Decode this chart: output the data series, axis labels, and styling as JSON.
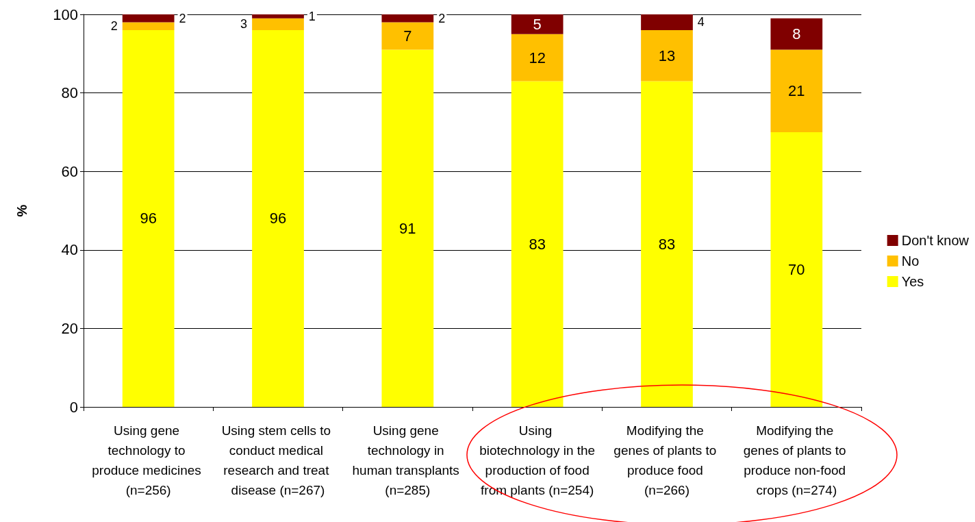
{
  "chart_data": {
    "type": "bar",
    "stacked": true,
    "ylabel": "%",
    "categories": [
      "Using gene technology to produce medicines (n=256)",
      "Using stem cells to conduct medical research and treat disease (n=267)",
      "Using gene technology in human transplants (n=285)",
      "Using biotechnology in the production of food from plants (n=254)",
      "Modifying the genes of plants to produce food (n=266)",
      "Modifying the genes of plants to produce non-food crops (n=274)"
    ],
    "series": [
      {
        "name": "Yes",
        "color": "#ffff00",
        "values": [
          96,
          96,
          91,
          83,
          83,
          70
        ]
      },
      {
        "name": "No",
        "color": "#ffc000",
        "values": [
          2,
          3,
          7,
          12,
          13,
          21
        ]
      },
      {
        "name": "Don't know",
        "color": "#800000",
        "values": [
          2,
          1,
          2,
          5,
          4,
          8
        ]
      }
    ],
    "ylim": [
      0,
      100
    ],
    "yticks": [
      0,
      20,
      40,
      60,
      80,
      100
    ],
    "grid": "y",
    "legend": "right",
    "data_labels": true
  }
}
